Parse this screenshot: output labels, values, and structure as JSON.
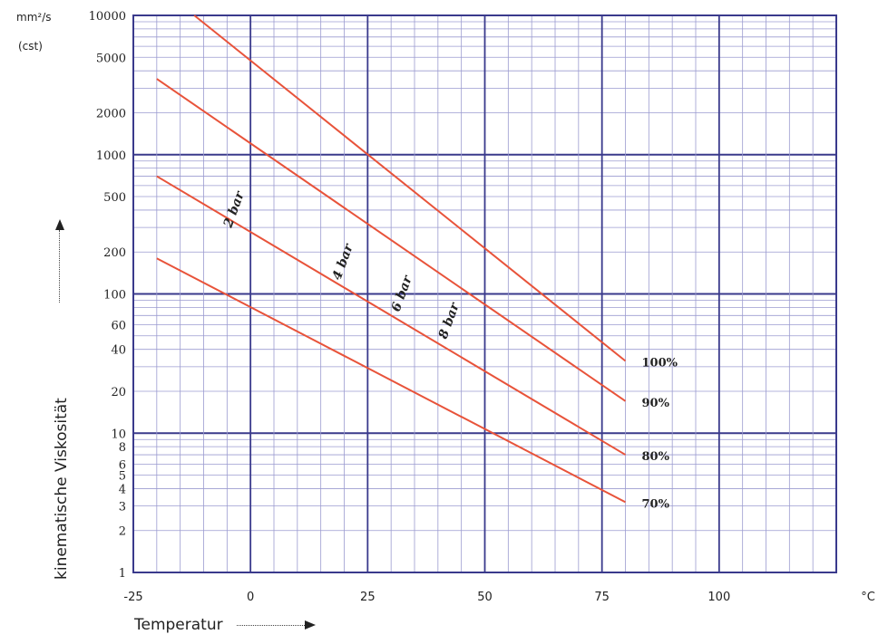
{
  "chart_data": {
    "type": "line",
    "yscale": "log",
    "xlim": [
      -25,
      125
    ],
    "ylim": [
      1,
      10000
    ],
    "x_ticks": [
      "-25",
      "0",
      "25",
      "50",
      "75",
      "100"
    ],
    "y_tick_values": [
      10000,
      5000,
      2000,
      1000,
      500,
      200,
      100,
      60,
      40,
      20,
      10,
      8,
      6,
      5,
      4,
      3,
      2,
      1
    ],
    "y_ticks": [
      "10000",
      "5000",
      "2000",
      "1000",
      "500",
      "200",
      "100",
      "60",
      "40",
      "20",
      "10",
      "8",
      "6",
      "5",
      "4",
      "3",
      "2",
      "1"
    ],
    "y_unit_line1": "mm²/s",
    "y_unit_line2": "(cst)",
    "x_unit": "°C",
    "xlabel": "Temperatur",
    "ylabel": "kinematische Viskosität",
    "series": [
      {
        "name": "100%",
        "color": "#e8533a",
        "x": [
          -12,
          80
        ],
        "y": [
          10000,
          33
        ]
      },
      {
        "name": "90%",
        "color": "#e8533a",
        "x": [
          -20,
          80
        ],
        "y": [
          3500,
          17
        ]
      },
      {
        "name": "80%",
        "color": "#e8533a",
        "x": [
          -20,
          80
        ],
        "y": [
          700,
          7
        ]
      },
      {
        "name": "70%",
        "color": "#e8533a",
        "x": [
          -20,
          80
        ],
        "y": [
          180,
          3.2
        ]
      }
    ],
    "annotations": [
      "2 bar",
      "4 bar",
      "6 bar",
      "8 bar"
    ]
  }
}
